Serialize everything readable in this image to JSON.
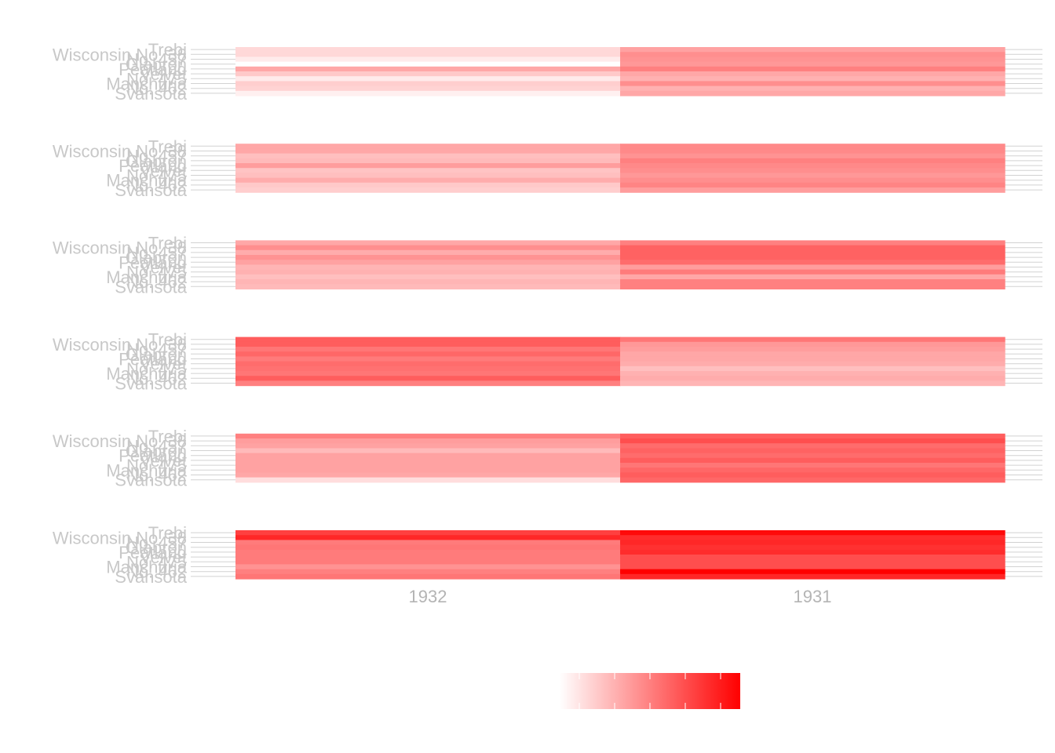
{
  "chart_data": {
    "type": "heatmap",
    "title": "",
    "xlabel": "",
    "ylabel": "",
    "x": [
      "1932",
      "1931"
    ],
    "varieties": [
      "Trebi",
      "Wisconsin No. 38",
      "No. 457",
      "Glabron",
      "Peatland",
      "Velvet",
      "No. 475",
      "Manchuria",
      "No. 462",
      "Svansota"
    ],
    "color_scale": {
      "low": "#ffffff",
      "high": "#ff0000",
      "min": 14,
      "max": 66
    },
    "legend": {
      "position": "bottom",
      "labels": []
    },
    "grid": true,
    "panels": [
      {
        "values": [
          [
            22.0,
            33.0
          ],
          [
            22.0,
            37.0
          ],
          [
            18.0,
            36.0
          ],
          [
            14.0,
            35.0
          ],
          [
            32.0,
            40.0
          ],
          [
            25.0,
            32.0
          ],
          [
            18.0,
            30.0
          ],
          [
            24.0,
            37.0
          ],
          [
            23.0,
            30.0
          ],
          [
            17.0,
            32.0
          ]
        ]
      },
      {
        "values": [
          [
            32.0,
            38.0
          ],
          [
            32.0,
            38.0
          ],
          [
            27.0,
            36.0
          ],
          [
            28.0,
            40.0
          ],
          [
            34.0,
            38.0
          ],
          [
            26.0,
            37.0
          ],
          [
            27.0,
            35.0
          ],
          [
            31.0,
            37.0
          ],
          [
            25.0,
            39.0
          ],
          [
            24.0,
            34.0
          ]
        ]
      },
      {
        "values": [
          [
            32.0,
            40.0
          ],
          [
            37.0,
            46.0
          ],
          [
            31.0,
            46.0
          ],
          [
            36.0,
            46.0
          ],
          [
            33.0,
            44.0
          ],
          [
            29.0,
            34.0
          ],
          [
            30.0,
            41.0
          ],
          [
            27.0,
            32.0
          ],
          [
            29.0,
            40.0
          ],
          [
            28.0,
            40.0
          ]
        ]
      },
      {
        "values": [
          [
            47.0,
            42.0
          ],
          [
            47.0,
            35.0
          ],
          [
            42.0,
            34.0
          ],
          [
            45.0,
            32.0
          ],
          [
            41.0,
            32.0
          ],
          [
            44.0,
            31.0
          ],
          [
            43.0,
            27.0
          ],
          [
            42.0,
            30.0
          ],
          [
            47.0,
            31.0
          ],
          [
            40.0,
            29.0
          ]
        ]
      },
      {
        "values": [
          [
            40.0,
            47.0
          ],
          [
            34.0,
            50.0
          ],
          [
            33.0,
            44.0
          ],
          [
            28.0,
            46.0
          ],
          [
            33.0,
            44.0
          ],
          [
            33.0,
            47.0
          ],
          [
            33.0,
            42.0
          ],
          [
            33.0,
            45.0
          ],
          [
            32.0,
            47.0
          ],
          [
            21.0,
            45.0
          ]
        ]
      },
      {
        "values": [
          [
            53.0,
            64.0
          ],
          [
            58.0,
            57.0
          ],
          [
            41.0,
            58.0
          ],
          [
            42.0,
            56.0
          ],
          [
            41.0,
            57.0
          ],
          [
            41.0,
            50.0
          ],
          [
            41.0,
            50.0
          ],
          [
            36.0,
            50.0
          ],
          [
            40.0,
            66.0
          ],
          [
            42.0,
            58.0
          ]
        ]
      }
    ]
  }
}
